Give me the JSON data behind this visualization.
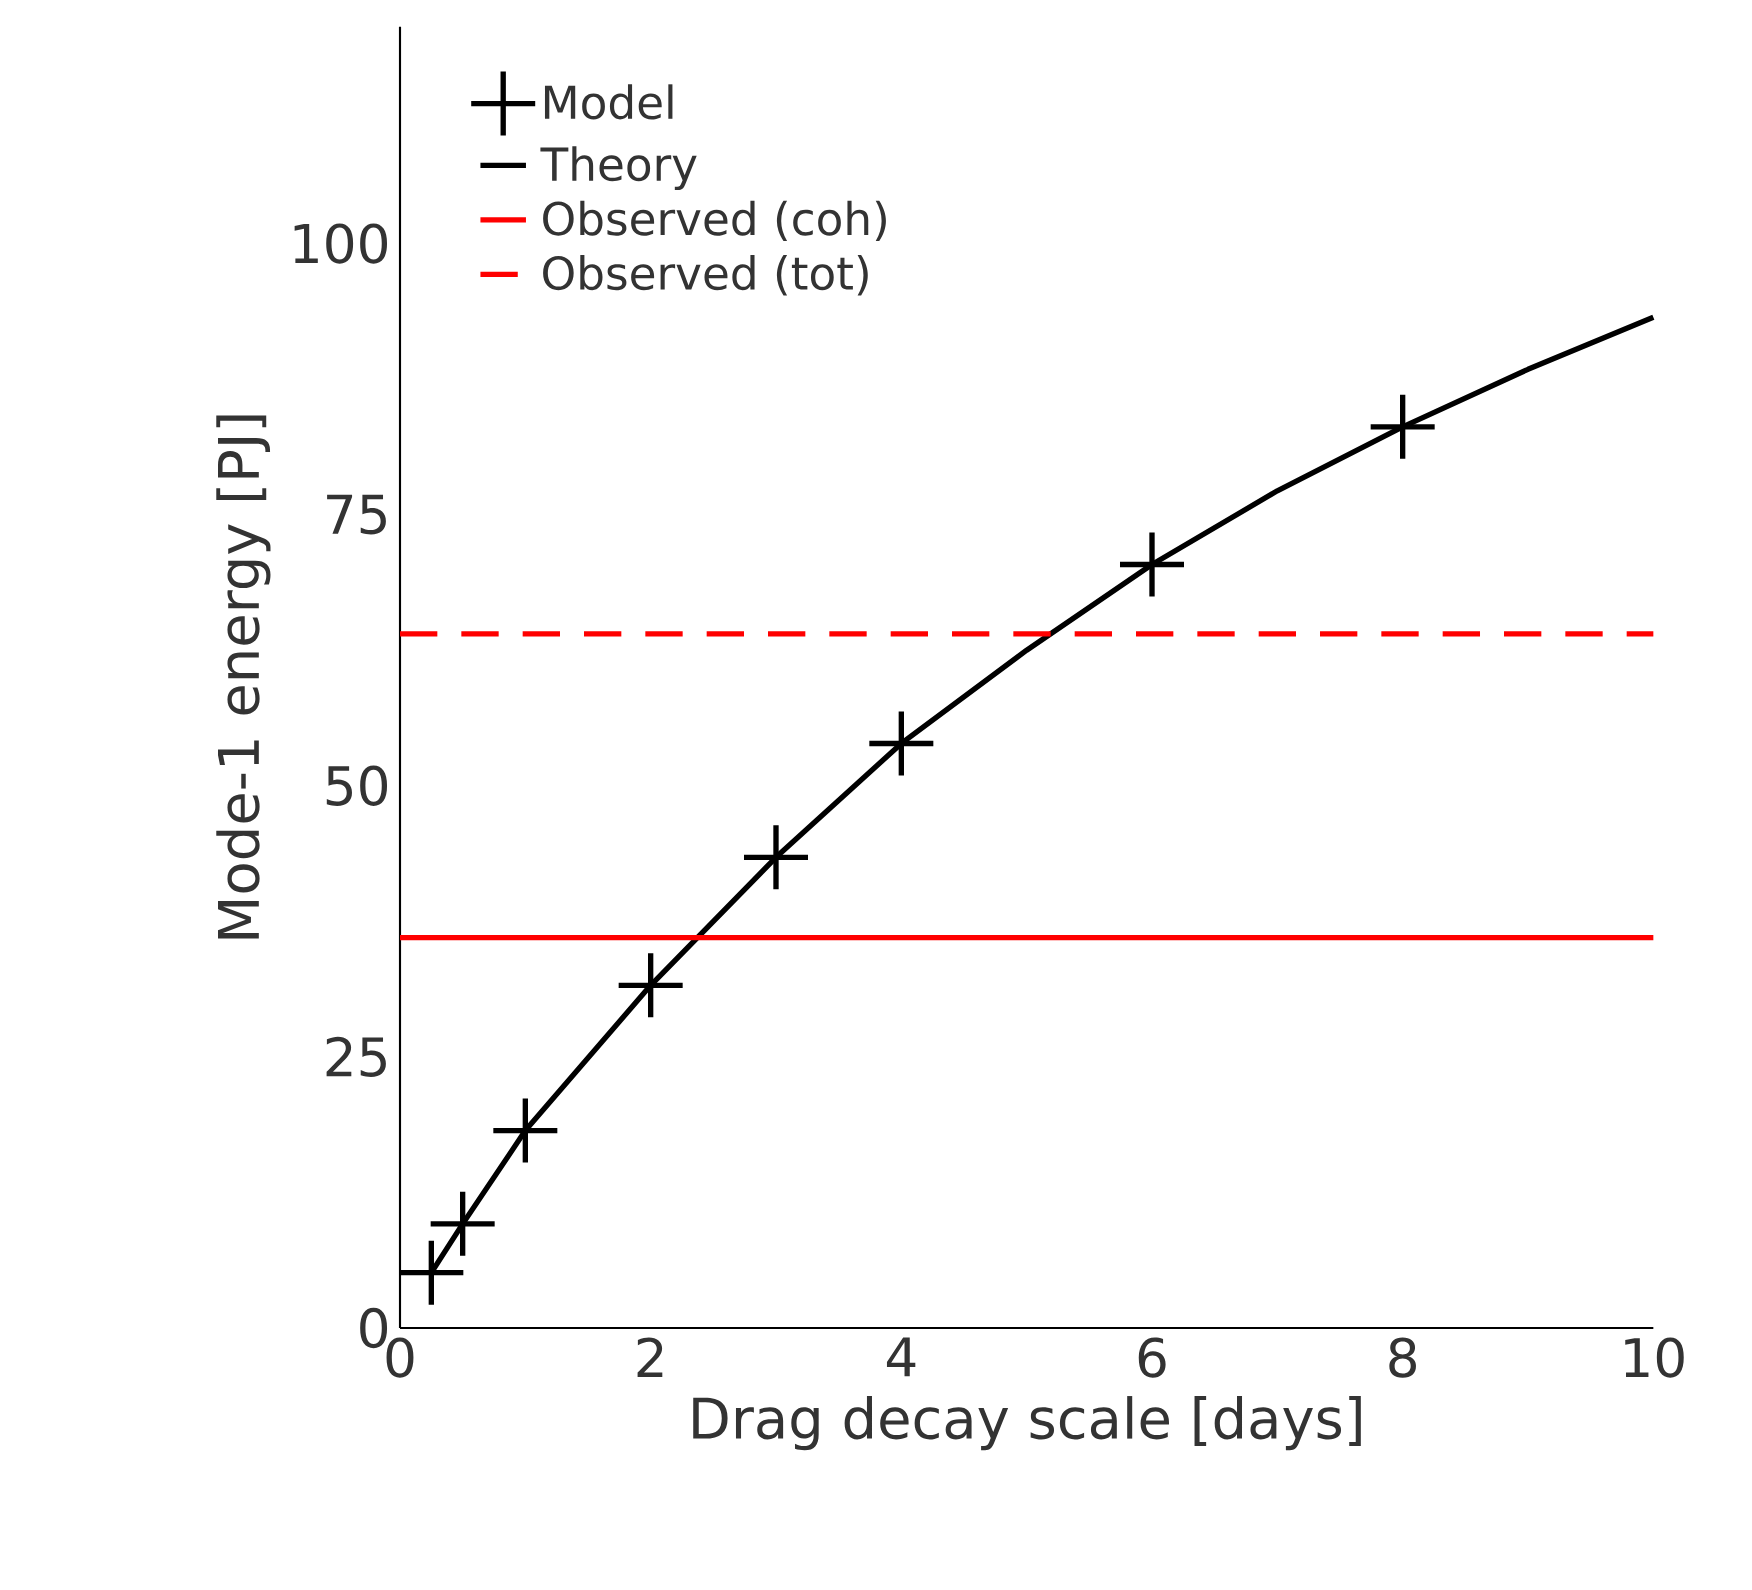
{
  "chart_data": {
    "type": "line",
    "xlabel": "Drag decay scale [days]",
    "ylabel": "Mode-1 energy [PJ]",
    "xlim": [
      0,
      10
    ],
    "xticks": [
      0,
      2,
      4,
      6,
      8,
      10
    ],
    "ylim": [
      0,
      120
    ],
    "yticks": [
      0,
      25,
      50,
      75,
      100
    ],
    "legend": "top left",
    "grid": false,
    "series": [
      {
        "name": "Model",
        "type": "scatter",
        "marker": "cross",
        "color": "#000000",
        "x": [
          0.25,
          0.5,
          1,
          2,
          3,
          4,
          6,
          8
        ],
        "values": [
          5.1,
          9.6,
          18.2,
          31.6,
          43.4,
          53.9,
          70.4,
          83.1
        ]
      },
      {
        "name": "Theory",
        "color": "#000000",
        "line_style": "solid",
        "x": [
          0.25,
          0.5,
          1,
          2,
          3,
          4,
          5,
          6,
          7,
          8,
          9,
          10
        ],
        "values": [
          5.1,
          9.6,
          18.2,
          31.6,
          43.4,
          53.9,
          62.5,
          70.4,
          77.2,
          83.1,
          88.4,
          93.2
        ]
      }
    ],
    "ref_lines": [
      {
        "axis": "y",
        "value": 36,
        "label": "Observed (coh)",
        "color": "#ff0000",
        "line_style": "solid"
      },
      {
        "axis": "y",
        "value": 64,
        "label": "Observed (tot)",
        "color": "#ff0000",
        "line_style": "dashed"
      }
    ]
  }
}
